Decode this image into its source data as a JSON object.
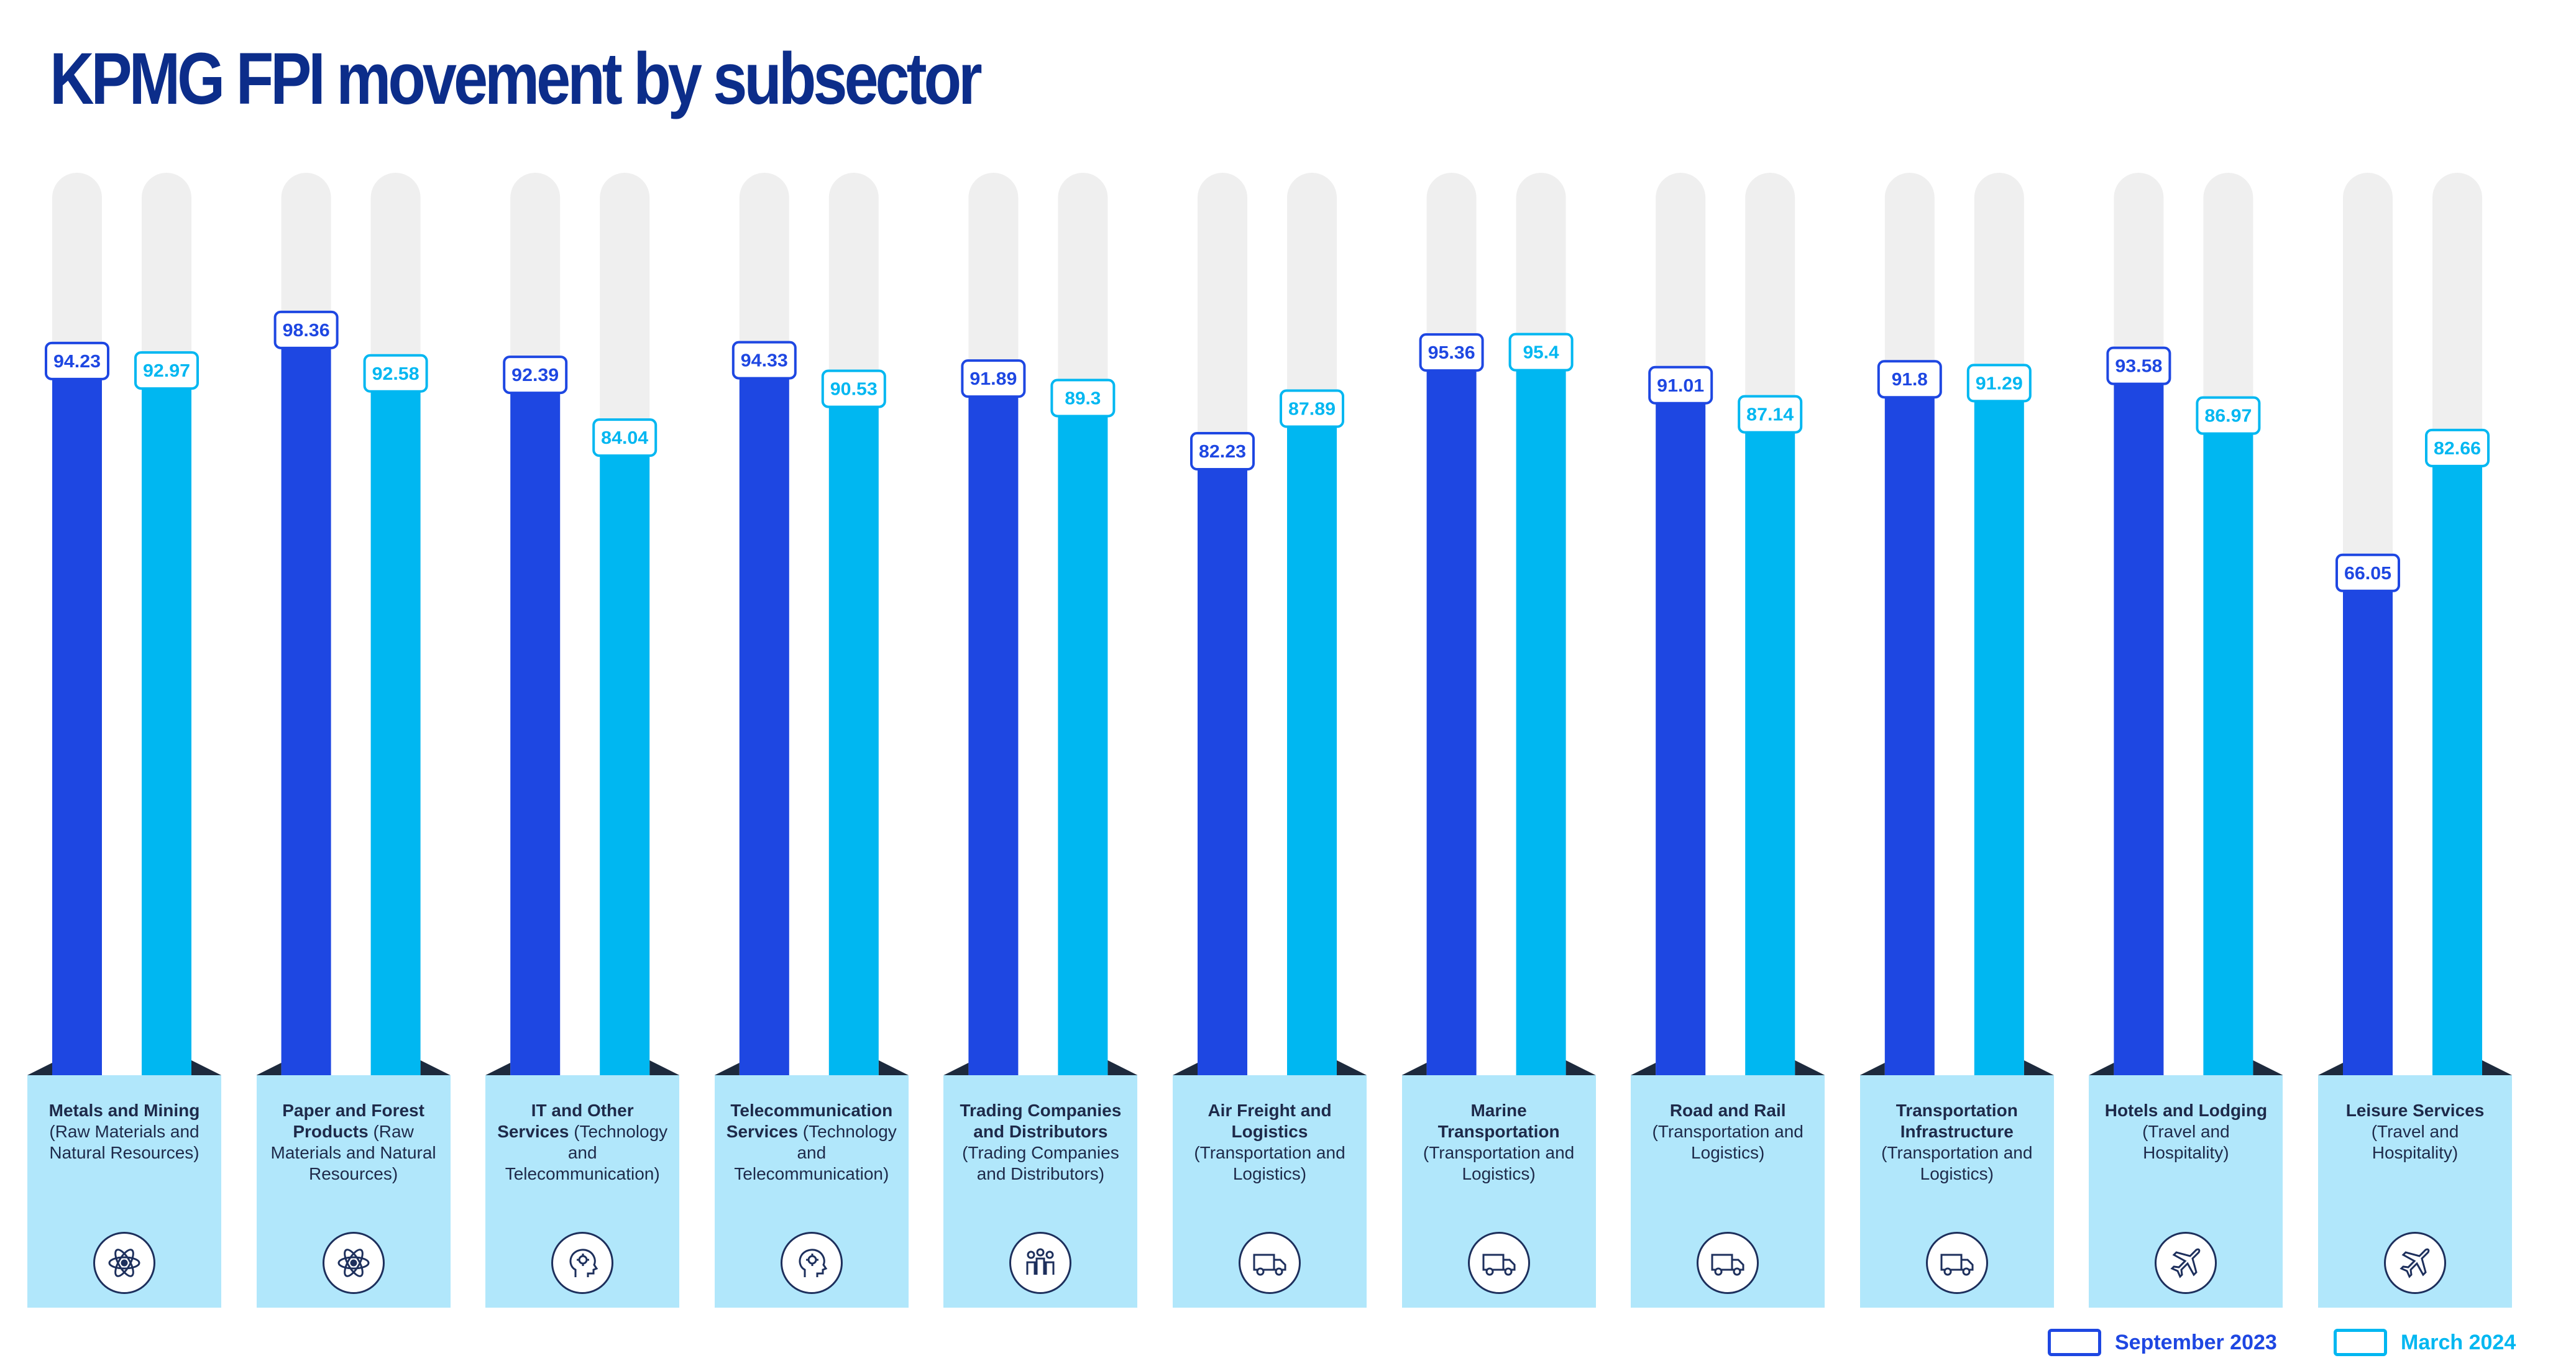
{
  "title": "KPMG FPI movement by subsector",
  "colors": {
    "september": "#1e47e2",
    "march": "#00b7f1",
    "track": "#efefef",
    "caption_bg": "#b1e7fb",
    "title": "#0c2d8a"
  },
  "legend": [
    {
      "label": "September 2023",
      "color": "#1e47e2"
    },
    {
      "label": "March 2024",
      "color": "#00b7f1"
    }
  ],
  "subsectors": [
    {
      "name": "Metals and Mining",
      "sub": "(Raw Materials and Natural Resources)",
      "icon": "atom-icon"
    },
    {
      "name": "Paper and Forest Products",
      "sub": "(Raw Materials and Natural Resources)",
      "icon": "atom-icon"
    },
    {
      "name": "IT and Other Services",
      "sub": "(Technology and Telecommunication)",
      "icon": "tech-head-icon"
    },
    {
      "name": "Telecommunication Services",
      "sub": "(Technology and Telecommunication)",
      "icon": "tech-head-icon"
    },
    {
      "name": "Trading Companies and Distributors",
      "sub": "(Trading Companies and Distributors)",
      "icon": "people-group-icon"
    },
    {
      "name": "Air Freight and Logistics",
      "sub": "(Transportation and Logistics)",
      "icon": "truck-icon"
    },
    {
      "name": "Marine Transportation",
      "sub": "(Transportation and Logistics)",
      "icon": "truck-icon"
    },
    {
      "name": "Road and Rail",
      "sub": "(Transportation and Logistics)",
      "icon": "truck-icon"
    },
    {
      "name": "Transportation Infrastructure",
      "sub": "(Transportation and Logistics)",
      "icon": "truck-icon"
    },
    {
      "name": "Hotels and Lodging",
      "sub": "(Travel and Hospitality)",
      "icon": "airplane-icon"
    },
    {
      "name": "Leisure Services",
      "sub": "(Travel and Hospitality)",
      "icon": "airplane-icon"
    }
  ],
  "chart_data": {
    "type": "bar",
    "title": "KPMG FPI movement by subsector",
    "categories": [
      "Metals and Mining",
      "Paper and Forest Products",
      "IT and Other Services",
      "Telecommunication Services",
      "Trading Companies and Distributors",
      "Air Freight and Logistics",
      "Marine Transportation",
      "Road and Rail",
      "Transportation Infrastructure",
      "Hotels and Lodging",
      "Leisure Services"
    ],
    "series": [
      {
        "name": "September 2023",
        "values": [
          94.23,
          98.36,
          92.39,
          94.33,
          91.89,
          82.23,
          95.36,
          91.01,
          91.8,
          93.58,
          66.05
        ],
        "labels": [
          "94.23",
          "98.36",
          "92.39",
          "94.33",
          "91.89",
          "82.23",
          "95.36",
          "91.01",
          "91.8",
          "93.58",
          "66.05"
        ]
      },
      {
        "name": "March 2024",
        "values": [
          92.97,
          92.58,
          84.04,
          90.53,
          89.3,
          87.89,
          95.4,
          87.14,
          91.29,
          86.97,
          82.66
        ],
        "labels": [
          "92.97",
          "92.58",
          "84.04",
          "90.53",
          "89.3",
          "87.89",
          "95.4",
          "87.14",
          "91.29",
          "86.97",
          "82.66"
        ]
      }
    ],
    "ylim": [
      0,
      120
    ],
    "xlabel": "",
    "ylabel": "",
    "legend": "bottom-right",
    "grid": false
  }
}
